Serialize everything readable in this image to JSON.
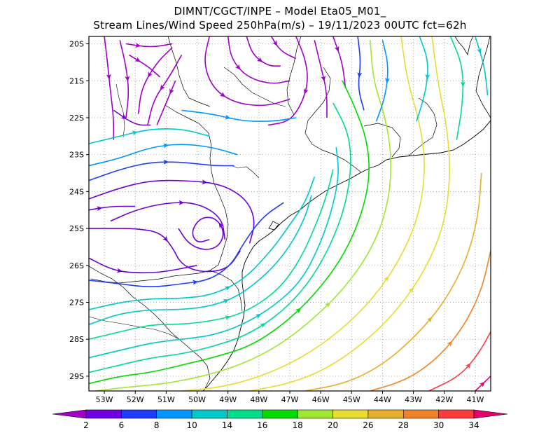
{
  "header": {
    "line1": "DIMNT/CGCT/INPE –  Model Eta05_M01_",
    "line2": "Stream Lines/Wind Speed 250hPa(m/s) –  19/11/2023 00UTC fct=62h"
  },
  "map": {
    "lon_range": [
      -53.5,
      -40.5
    ],
    "lat_range": [
      -29.4,
      -19.8
    ],
    "y_ticks": [
      {
        "lat": -20,
        "label": "20S"
      },
      {
        "lat": -21,
        "label": "21S"
      },
      {
        "lat": -22,
        "label": "22S"
      },
      {
        "lat": -23,
        "label": "23S"
      },
      {
        "lat": -24,
        "label": "24S"
      },
      {
        "lat": -25,
        "label": "25S"
      },
      {
        "lat": -26,
        "label": "26S"
      },
      {
        "lat": -27,
        "label": "27S"
      },
      {
        "lat": -28,
        "label": "28S"
      },
      {
        "lat": -29,
        "label": "29S"
      }
    ],
    "x_ticks": [
      {
        "lon": -53,
        "label": "53W"
      },
      {
        "lon": -52,
        "label": "52W"
      },
      {
        "lon": -51,
        "label": "51W"
      },
      {
        "lon": -50,
        "label": "50W"
      },
      {
        "lon": -49,
        "label": "49W"
      },
      {
        "lon": -48,
        "label": "48W"
      },
      {
        "lon": -47,
        "label": "47W"
      },
      {
        "lon": -46,
        "label": "46W"
      },
      {
        "lon": -45,
        "label": "45W"
      },
      {
        "lon": -44,
        "label": "44W"
      },
      {
        "lon": -43,
        "label": "43W"
      },
      {
        "lon": -42,
        "label": "42W"
      },
      {
        "lon": -41,
        "label": "41W"
      }
    ],
    "grid": "dotted"
  },
  "colorbar": {
    "labels": [
      "2",
      "6",
      "8",
      "10",
      "14",
      "16",
      "18",
      "20",
      "26",
      "28",
      "30",
      "34"
    ],
    "colors": [
      "#a000c8",
      "#6e00dc",
      "#1e3cff",
      "#0096ff",
      "#00c8c8",
      "#00dc8c",
      "#00dc00",
      "#a0e632",
      "#e6dc32",
      "#e6af2d",
      "#f08228",
      "#fa3c3c",
      "#e6006e"
    ]
  },
  "streamlines": [
    {
      "color": "#a000c8",
      "pts": [
        [
          -53,
          -19.8
        ],
        [
          -52.9,
          -20.5
        ],
        [
          -52.8,
          -21.3
        ],
        [
          -52.7,
          -22
        ],
        [
          -52.7,
          -22.6
        ]
      ]
    },
    {
      "color": "#a000c8",
      "pts": [
        [
          -52.5,
          -19.9
        ],
        [
          -52.3,
          -20.6
        ],
        [
          -52.2,
          -21.3
        ],
        [
          -52.3,
          -22
        ]
      ]
    },
    {
      "color": "#a000c8",
      "pts": [
        [
          -52.3,
          -20
        ],
        [
          -51.5,
          -20.1
        ],
        [
          -50.8,
          -20
        ]
      ]
    },
    {
      "color": "#a000c8",
      "pts": [
        [
          -52.2,
          -20.3
        ],
        [
          -51.6,
          -20.6
        ],
        [
          -51.2,
          -20.9
        ]
      ]
    },
    {
      "color": "#a000c8",
      "pts": [
        [
          -50.8,
          -20.1
        ],
        [
          -51.3,
          -20.5
        ],
        [
          -51.8,
          -21.2
        ],
        [
          -51.9,
          -21.9
        ]
      ]
    },
    {
      "color": "#a000c8",
      "pts": [
        [
          -50.5,
          -20.3
        ],
        [
          -50.9,
          -20.9
        ],
        [
          -51.4,
          -21.5
        ],
        [
          -51.6,
          -22.2
        ]
      ]
    },
    {
      "color": "#a000c8",
      "pts": [
        [
          -50.7,
          -21
        ],
        [
          -51.0,
          -21.6
        ],
        [
          -51.3,
          -22.2
        ]
      ]
    },
    {
      "color": "#a000c8",
      "pts": [
        [
          -49.6,
          -19.8
        ],
        [
          -49.8,
          -20.5
        ],
        [
          -49.5,
          -21.2
        ],
        [
          -48.8,
          -21.6
        ],
        [
          -47.8,
          -21.7
        ],
        [
          -47.0,
          -21.5
        ]
      ]
    },
    {
      "color": "#a000c8",
      "pts": [
        [
          -49.0,
          -19.8
        ],
        [
          -48.9,
          -20.4
        ],
        [
          -48.4,
          -20.9
        ],
        [
          -47.6,
          -21.1
        ],
        [
          -47.0,
          -21.0
        ]
      ]
    },
    {
      "color": "#a000c8",
      "pts": [
        [
          -48.4,
          -19.8
        ],
        [
          -48.2,
          -20.3
        ],
        [
          -47.7,
          -20.6
        ],
        [
          -47.3,
          -20.6
        ]
      ]
    },
    {
      "color": "#a000c8",
      "pts": [
        [
          -47.6,
          -19.8
        ],
        [
          -47.3,
          -20.2
        ],
        [
          -46.8,
          -20.4
        ]
      ]
    },
    {
      "color": "#a000c8",
      "pts": [
        [
          -46.8,
          -19.8
        ],
        [
          -46.5,
          -20.4
        ],
        [
          -46.4,
          -21.0
        ],
        [
          -46.6,
          -21.6
        ],
        [
          -47.0,
          -22.1
        ],
        [
          -47.7,
          -22.2
        ]
      ]
    },
    {
      "color": "#a000c8",
      "pts": [
        [
          -46.2,
          -19.9
        ],
        [
          -46.0,
          -20.6
        ],
        [
          -45.8,
          -21.3
        ],
        [
          -45.8,
          -22.0
        ]
      ]
    },
    {
      "color": "#a000c8",
      "pts": [
        [
          -45.6,
          -19.8
        ],
        [
          -45.3,
          -20.5
        ],
        [
          -45.2,
          -21.2
        ]
      ]
    },
    {
      "color": "#1e3cff",
      "pts": [
        [
          -44.8,
          -19.8
        ],
        [
          -44.7,
          -20.5
        ],
        [
          -44.8,
          -21.2
        ],
        [
          -44.6,
          -21.8
        ]
      ]
    },
    {
      "color": "#6e00dc",
      "pts": [
        [
          -52.7,
          -21.8
        ],
        [
          -52.0,
          -22.2
        ],
        [
          -51.5,
          -22.2
        ]
      ]
    },
    {
      "color": "#00c8c8",
      "pts": [
        [
          -53.5,
          -22.7
        ],
        [
          -52.5,
          -22.5
        ],
        [
          -51.5,
          -22.3
        ],
        [
          -50.5,
          -22.3
        ],
        [
          -49.6,
          -22.5
        ]
      ]
    },
    {
      "color": "#0096ff",
      "pts": [
        [
          -50.5,
          -21.8
        ],
        [
          -49.5,
          -21.9
        ],
        [
          -48.5,
          -22.1
        ],
        [
          -47.5,
          -22.1
        ],
        [
          -46.8,
          -22.0
        ]
      ]
    },
    {
      "color": "#0096ff",
      "pts": [
        [
          -53.5,
          -23.3
        ],
        [
          -52.5,
          -23.1
        ],
        [
          -51.5,
          -22.8
        ],
        [
          -50.5,
          -22.7
        ],
        [
          -49.5,
          -22.8
        ],
        [
          -48.7,
          -23.0
        ]
      ]
    },
    {
      "color": "#1e3cff",
      "pts": [
        [
          -53.5,
          -23.7
        ],
        [
          -52.5,
          -23.4
        ],
        [
          -51.5,
          -23.2
        ],
        [
          -50.5,
          -23.2
        ],
        [
          -49.5,
          -23.3
        ],
        [
          -48.8,
          -23.3
        ]
      ]
    },
    {
      "color": "#6e00dc",
      "pts": [
        [
          -53.5,
          -24.2
        ],
        [
          -52.5,
          -23.9
        ],
        [
          -51.5,
          -23.7
        ],
        [
          -50.3,
          -23.7
        ],
        [
          -49.2,
          -23.8
        ],
        [
          -48.4,
          -24.2
        ],
        [
          -48.1,
          -24.8
        ],
        [
          -48.3,
          -25.4
        ]
      ]
    },
    {
      "color": "#6e00dc",
      "pts": [
        [
          -53.5,
          -24.5
        ],
        [
          -52.8,
          -24.4
        ],
        [
          -52.0,
          -24.4
        ]
      ]
    },
    {
      "color": "#6e00dc",
      "pts": [
        [
          -52.8,
          -24.8
        ],
        [
          -52,
          -24.5
        ],
        [
          -51,
          -24.3
        ],
        [
          -50,
          -24.3
        ],
        [
          -49.2,
          -24.7
        ],
        [
          -49.1,
          -25.3
        ]
      ]
    },
    {
      "color": "#6e00dc",
      "pts": [
        [
          -50.6,
          -25
        ],
        [
          -50.3,
          -25.4
        ],
        [
          -49.8,
          -25.6
        ],
        [
          -49.3,
          -25.5
        ],
        [
          -49.1,
          -25.1
        ],
        [
          -49.4,
          -24.7
        ],
        [
          -49.9,
          -24.7
        ],
        [
          -50.2,
          -25.1
        ],
        [
          -50.0,
          -25.4
        ],
        [
          -49.6,
          -25.3
        ]
      ]
    },
    {
      "color": "#6e00dc",
      "pts": [
        [
          -53.5,
          -25.0
        ],
        [
          -52.8,
          -25.0
        ],
        [
          -52.0,
          -25.0
        ],
        [
          -51.2,
          -25.1
        ],
        [
          -50.8,
          -25.5
        ],
        [
          -50.5,
          -26.0
        ],
        [
          -49.8,
          -26.2
        ],
        [
          -49.0,
          -26.1
        ],
        [
          -48.6,
          -25.6
        ]
      ]
    },
    {
      "color": "#6e00dc",
      "pts": [
        [
          -53.5,
          -25.8
        ],
        [
          -52.8,
          -26.1
        ],
        [
          -52.2,
          -26.2
        ],
        [
          -51.2,
          -26.2
        ],
        [
          -50.0,
          -26.0
        ]
      ]
    },
    {
      "color": "#1e3cff",
      "pts": [
        [
          -53.5,
          -26.4
        ],
        [
          -52.5,
          -26.5
        ],
        [
          -51.5,
          -26.6
        ],
        [
          -50.5,
          -26.5
        ],
        [
          -49.6,
          -26.4
        ],
        [
          -48.9,
          -26.0
        ],
        [
          -48.5,
          -25.4
        ],
        [
          -47.9,
          -24.7
        ],
        [
          -47.2,
          -24.3
        ]
      ]
    },
    {
      "color": "#00c8c8",
      "pts": [
        [
          -53.5,
          -27.2
        ],
        [
          -52.5,
          -27.0
        ],
        [
          -51.5,
          -26.9
        ],
        [
          -50.5,
          -26.9
        ],
        [
          -49.5,
          -26.8
        ],
        [
          -48.5,
          -26.4
        ],
        [
          -47.6,
          -25.6
        ],
        [
          -47.0,
          -24.9
        ],
        [
          -46.5,
          -24.3
        ],
        [
          -46.2,
          -23.6
        ]
      ]
    },
    {
      "color": "#00c8c8",
      "pts": [
        [
          -53.5,
          -27.6
        ],
        [
          -52.5,
          -27.3
        ],
        [
          -51.5,
          -27.2
        ],
        [
          -50.5,
          -27.2
        ],
        [
          -49.5,
          -27.1
        ],
        [
          -48.6,
          -26.8
        ],
        [
          -47.7,
          -26.2
        ],
        [
          -47.0,
          -25.5
        ],
        [
          -46.5,
          -24.7
        ],
        [
          -46.3,
          -24.1
        ]
      ]
    },
    {
      "color": "#00dc8c",
      "pts": [
        [
          -53.5,
          -28.0
        ],
        [
          -52.5,
          -27.8
        ],
        [
          -51.5,
          -27.6
        ],
        [
          -50.5,
          -27.6
        ],
        [
          -49.5,
          -27.5
        ],
        [
          -48.5,
          -27.3
        ],
        [
          -47.4,
          -26.7
        ],
        [
          -46.7,
          -25.9
        ],
        [
          -46.2,
          -25.0
        ],
        [
          -45.8,
          -24.1
        ],
        [
          -45.6,
          -23.4
        ]
      ]
    },
    {
      "color": "#00c8c8",
      "pts": [
        [
          -53.5,
          -28.5
        ],
        [
          -52.5,
          -28.3
        ],
        [
          -51.5,
          -28.1
        ],
        [
          -50.5,
          -28.0
        ],
        [
          -49.5,
          -27.9
        ],
        [
          -48.5,
          -27.6
        ],
        [
          -47.5,
          -27.1
        ],
        [
          -46.6,
          -26.4
        ],
        [
          -46.0,
          -25.4
        ],
        [
          -45.6,
          -24.4
        ],
        [
          -45.4,
          -23.5
        ],
        [
          -45.5,
          -22.8
        ]
      ]
    },
    {
      "color": "#00dc8c",
      "pts": [
        [
          -53.5,
          -28.9
        ],
        [
          -52.5,
          -28.7
        ],
        [
          -51.5,
          -28.5
        ],
        [
          -50.5,
          -28.4
        ],
        [
          -49.5,
          -28.2
        ],
        [
          -48.4,
          -27.9
        ],
        [
          -47.3,
          -27.3
        ],
        [
          -46.4,
          -26.5
        ],
        [
          -45.7,
          -25.5
        ],
        [
          -45.2,
          -24.4
        ],
        [
          -45.0,
          -23.3
        ],
        [
          -45.1,
          -22.4
        ],
        [
          -45.6,
          -21.6
        ]
      ]
    },
    {
      "color": "#00dc00",
      "pts": [
        [
          -53.5,
          -29.2
        ],
        [
          -52.5,
          -29.0
        ],
        [
          -51.5,
          -28.9
        ],
        [
          -50.5,
          -28.7
        ],
        [
          -49.5,
          -28.5
        ],
        [
          -48.3,
          -28.2
        ],
        [
          -47.2,
          -27.6
        ],
        [
          -46.2,
          -26.8
        ],
        [
          -45.3,
          -25.8
        ],
        [
          -44.7,
          -24.7
        ],
        [
          -44.4,
          -23.6
        ],
        [
          -44.5,
          -22.6
        ],
        [
          -44.9,
          -21.7
        ],
        [
          -45.3,
          -21.0
        ]
      ]
    },
    {
      "color": "#a0e632",
      "pts": [
        [
          -53.3,
          -29.4
        ],
        [
          -52.3,
          -29.3
        ],
        [
          -51.0,
          -29.2
        ],
        [
          -49.8,
          -29.0
        ],
        [
          -48.6,
          -28.7
        ],
        [
          -47.4,
          -28.2
        ],
        [
          -46.3,
          -27.5
        ],
        [
          -45.2,
          -26.6
        ],
        [
          -44.3,
          -25.5
        ],
        [
          -43.8,
          -24.3
        ],
        [
          -43.7,
          -23.1
        ],
        [
          -43.9,
          -22.0
        ],
        [
          -44.3,
          -21.0
        ],
        [
          -44.4,
          -19.9
        ]
      ]
    },
    {
      "color": "#e6dc32",
      "pts": [
        [
          -50.5,
          -29.4
        ],
        [
          -49.2,
          -29.3
        ],
        [
          -47.9,
          -29.0
        ],
        [
          -46.6,
          -28.5
        ],
        [
          -45.4,
          -27.8
        ],
        [
          -44.3,
          -26.9
        ],
        [
          -43.4,
          -25.8
        ],
        [
          -42.8,
          -24.6
        ],
        [
          -42.6,
          -23.3
        ],
        [
          -42.8,
          -22.1
        ],
        [
          -43.2,
          -21.0
        ],
        [
          -43.4,
          -19.8
        ]
      ]
    },
    {
      "color": "#e6dc32",
      "pts": [
        [
          -48.3,
          -29.4
        ],
        [
          -47.0,
          -29.2
        ],
        [
          -45.8,
          -28.8
        ],
        [
          -44.6,
          -28.1
        ],
        [
          -43.5,
          -27.2
        ],
        [
          -42.6,
          -26.1
        ],
        [
          -42.0,
          -24.9
        ],
        [
          -41.8,
          -23.6
        ],
        [
          -41.9,
          -22.3
        ],
        [
          -42.2,
          -21.1
        ],
        [
          -42.4,
          -19.8
        ]
      ]
    },
    {
      "color": "#e6af2d",
      "pts": [
        [
          -46.5,
          -29.4
        ],
        [
          -45.2,
          -29.2
        ],
        [
          -44.0,
          -28.7
        ],
        [
          -42.9,
          -27.9
        ],
        [
          -42.0,
          -27.0
        ],
        [
          -41.3,
          -25.9
        ],
        [
          -40.9,
          -24.7
        ],
        [
          -40.8,
          -23.5
        ]
      ]
    },
    {
      "color": "#f08228",
      "pts": [
        [
          -44.4,
          -29.4
        ],
        [
          -43.2,
          -29.1
        ],
        [
          -42.2,
          -28.5
        ],
        [
          -41.4,
          -27.7
        ],
        [
          -40.8,
          -26.7
        ],
        [
          -40.5,
          -25.6
        ]
      ]
    },
    {
      "color": "#fa3c3c",
      "pts": [
        [
          -42.5,
          -29.4
        ],
        [
          -41.5,
          -29.0
        ],
        [
          -40.9,
          -28.4
        ],
        [
          -40.5,
          -27.8
        ]
      ]
    },
    {
      "color": "#e6006e",
      "pts": [
        [
          -41.0,
          -29.4
        ],
        [
          -40.5,
          -29.0
        ]
      ]
    },
    {
      "color": "#0096ff",
      "pts": [
        [
          -44.0,
          -19.9
        ],
        [
          -43.8,
          -20.6
        ],
        [
          -43.9,
          -21.4
        ],
        [
          -44.2,
          -22.1
        ]
      ]
    },
    {
      "color": "#00c8c8",
      "pts": [
        [
          -42.8,
          -19.8
        ],
        [
          -42.5,
          -20.5
        ],
        [
          -42.6,
          -21.3
        ],
        [
          -42.9,
          -22.1
        ]
      ]
    },
    {
      "color": "#00dc8c",
      "pts": [
        [
          -41.8,
          -19.8
        ],
        [
          -41.4,
          -20.6
        ],
        [
          -41.4,
          -21.6
        ],
        [
          -41.6,
          -22.6
        ]
      ]
    },
    {
      "color": "#00c8c8",
      "pts": [
        [
          -41.0,
          -19.8
        ],
        [
          -40.7,
          -20.6
        ],
        [
          -40.6,
          -21.4
        ]
      ]
    }
  ]
}
